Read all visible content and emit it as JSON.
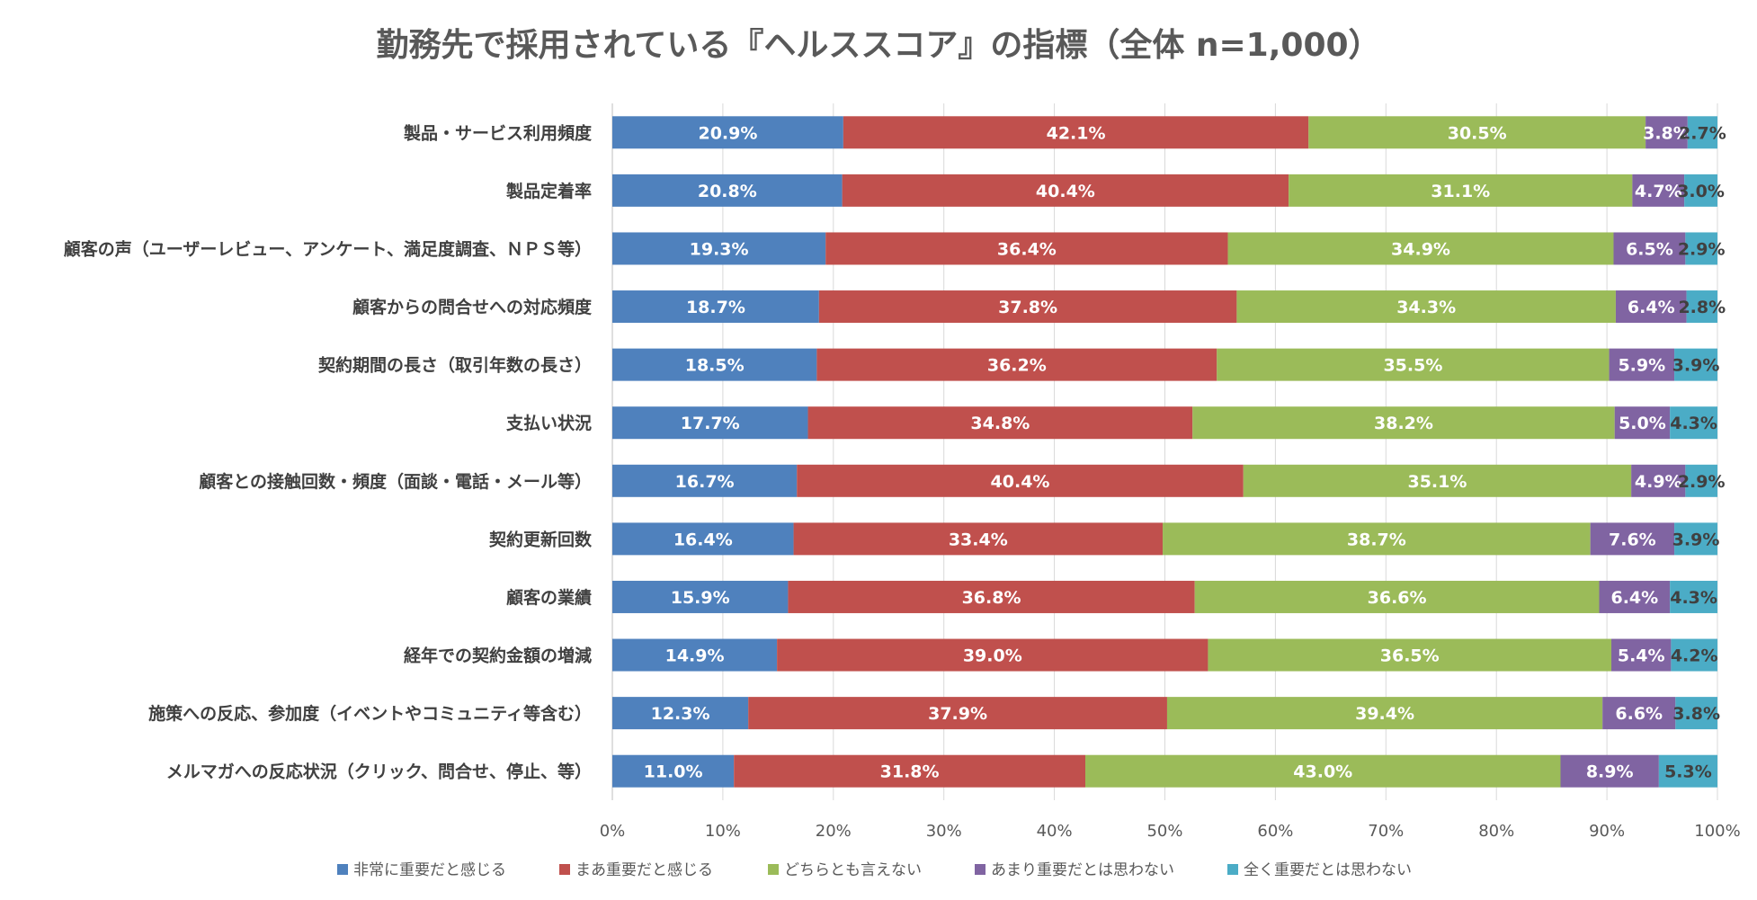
{
  "chart_data": {
    "type": "bar",
    "orientation": "horizontal",
    "stacked": "percent",
    "title": "勤務先で採用されている『ヘルススコア』の指標（全体 n=1,000）",
    "xlabel": "",
    "ylabel": "",
    "xlim": [
      0,
      100
    ],
    "grid": true,
    "legend": "bottom",
    "categories": [
      "製品・サービス利用頻度",
      "製品定着率",
      "顧客の声（ユーザーレビュー、アンケート、満足度調査、ＮＰＳ等）",
      "顧客からの問合せへの対応頻度",
      "契約期間の長さ（取引年数の長さ）",
      "支払い状況",
      "顧客との接触回数・頻度（面談・電話・メール等）",
      "契約更新回数",
      "顧客の業績",
      "経年での契約金額の増減",
      "施策への反応、参加度（イベントやコミュニティ等含む）",
      "メルマガへの反応状況（クリック、問合せ、停止、等）"
    ],
    "series": [
      {
        "name": "非常に重要だと感じる",
        "color": "#4F81BD",
        "label_color": "#ffffff",
        "values": [
          20.9,
          20.8,
          19.3,
          18.7,
          18.5,
          17.7,
          16.7,
          16.4,
          15.9,
          14.9,
          12.3,
          11.0
        ],
        "labels": [
          "20.9%",
          "20.8%",
          "19.3%",
          "18.7%",
          "18.5%",
          "17.7%",
          "16.7%",
          "16.4%",
          "15.9%",
          "14.9%",
          "12.3%",
          "11.0%"
        ]
      },
      {
        "name": "まあ重要だと感じる",
        "color": "#C0504D",
        "label_color": "#ffffff",
        "values": [
          42.1,
          40.4,
          36.4,
          37.8,
          36.2,
          34.8,
          40.4,
          33.4,
          36.8,
          39.0,
          37.9,
          31.8
        ],
        "labels": [
          "42.1%",
          "40.4%",
          "36.4%",
          "37.8%",
          "36.2%",
          "34.8%",
          "40.4%",
          "33.4%",
          "36.8%",
          "39.0%",
          "37.9%",
          "31.8%"
        ]
      },
      {
        "name": "どちらとも言えない",
        "color": "#9BBB59",
        "label_color": "#ffffff",
        "values": [
          30.5,
          31.1,
          34.9,
          34.3,
          35.5,
          38.2,
          35.1,
          38.7,
          36.6,
          36.5,
          39.4,
          43.0
        ],
        "labels": [
          "30.5%",
          "31.1%",
          "34.9%",
          "34.3%",
          "35.5%",
          "38.2%",
          "35.1%",
          "38.7%",
          "36.6%",
          "36.5%",
          "39.4%",
          "43.0%"
        ]
      },
      {
        "name": "あまり重要だとは思わない",
        "color": "#8064A2",
        "label_color": "#ffffff",
        "values": [
          3.8,
          4.7,
          6.5,
          6.4,
          5.9,
          5.0,
          4.9,
          7.6,
          6.4,
          5.4,
          6.6,
          8.9
        ],
        "labels": [
          "3.8%",
          "4.7%",
          "6.5%",
          "6.4%",
          "5.9%",
          "5.0%",
          "4.9%",
          "7.6%",
          "6.4%",
          "5.4%",
          "6.6%",
          "8.9%"
        ]
      },
      {
        "name": "全く重要だとは思わない",
        "color": "#4BACC6",
        "label_color": "#404040",
        "values": [
          2.7,
          3.0,
          2.9,
          2.8,
          3.9,
          4.3,
          2.9,
          3.9,
          4.3,
          4.2,
          3.8,
          5.3
        ],
        "labels": [
          "2.7%",
          "3.0%",
          "2.9%",
          "2.8%",
          "3.9%",
          "4.3%",
          "2.9%",
          "3.9%",
          "4.3%",
          "4.2%",
          "3.8%",
          "5.3%"
        ]
      }
    ],
    "x_ticks": [
      "0%",
      "10%",
      "20%",
      "30%",
      "40%",
      "50%",
      "60%",
      "70%",
      "80%",
      "90%",
      "100%"
    ]
  }
}
